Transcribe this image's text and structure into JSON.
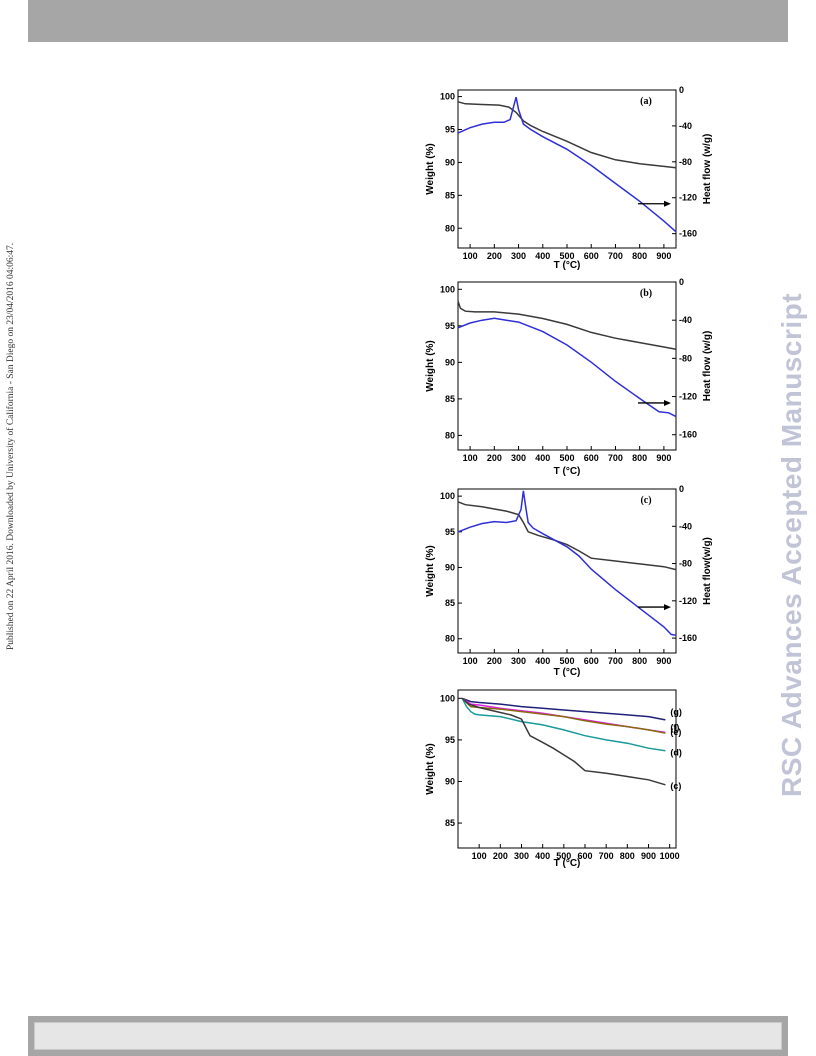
{
  "side_note": "Published on 22 April 2016. Downloaded by University of California - San Diego on 23/04/2016 04:06:47.",
  "watermark": "RSC Advances Accepted Manuscript",
  "chart_data": [
    {
      "type": "line",
      "panel_label": "(a)",
      "xlabel": "T (°C)",
      "ylabel": "Weight (%)",
      "y2label": "Heat flow (w/g)",
      "xlim": [
        50,
        950
      ],
      "ylim": [
        77,
        101
      ],
      "y2lim": [
        -176,
        0
      ],
      "xticks": [
        100,
        200,
        300,
        400,
        500,
        600,
        700,
        800,
        900
      ],
      "yticks": [
        80,
        85,
        90,
        95,
        100
      ],
      "y2ticks": [
        0,
        -40,
        -80,
        -120,
        -160
      ],
      "annotation": "arrow pointing to right axis",
      "series": [
        {
          "axis": "left",
          "color": "#3a3a3a",
          "x": [
            50,
            80,
            150,
            220,
            260,
            290,
            320,
            350,
            400,
            500,
            600,
            700,
            800,
            900,
            950
          ],
          "y": [
            99.2,
            98.9,
            98.8,
            98.7,
            98.4,
            97.6,
            96.3,
            95.6,
            94.7,
            93.2,
            91.5,
            90.4,
            89.8,
            89.4,
            89.2
          ]
        },
        {
          "axis": "right",
          "color": "#2f2fd6",
          "x": [
            50,
            100,
            150,
            200,
            240,
            265,
            280,
            290,
            300,
            320,
            350,
            400,
            500,
            600,
            700,
            800,
            900,
            950
          ],
          "y": [
            -48,
            -42,
            -38,
            -36,
            -36,
            -33,
            -18,
            -8,
            -22,
            -38,
            -44,
            -52,
            -66,
            -84,
            -104,
            -124,
            -146,
            -158
          ]
        }
      ]
    },
    {
      "type": "line",
      "panel_label": "(b)",
      "xlabel": "T (°C)",
      "ylabel": "Weight (%)",
      "y2label": "Heat flow (w/g)",
      "xlim": [
        50,
        950
      ],
      "ylim": [
        78,
        101
      ],
      "y2lim": [
        -176,
        0
      ],
      "xticks": [
        100,
        200,
        300,
        400,
        500,
        600,
        700,
        800,
        900
      ],
      "yticks": [
        80,
        85,
        90,
        95,
        100
      ],
      "y2ticks": [
        0,
        -40,
        -80,
        -120,
        -160
      ],
      "annotation": "arrow pointing to right axis",
      "series": [
        {
          "axis": "left",
          "color": "#3a3a3a",
          "x": [
            50,
            60,
            80,
            120,
            200,
            300,
            400,
            500,
            600,
            700,
            800,
            900,
            950
          ],
          "y": [
            98.4,
            97.4,
            97.0,
            96.9,
            96.9,
            96.6,
            96.0,
            95.2,
            94.1,
            93.3,
            92.7,
            92.1,
            91.8
          ]
        },
        {
          "axis": "right",
          "color": "#2f2fd6",
          "x": [
            50,
            100,
            150,
            200,
            250,
            300,
            400,
            500,
            600,
            700,
            800,
            880,
            920,
            950
          ],
          "y": [
            -48,
            -43,
            -40,
            -38,
            -40,
            -42,
            -52,
            -66,
            -84,
            -104,
            -122,
            -136,
            -137,
            -141
          ]
        }
      ]
    },
    {
      "type": "line",
      "panel_label": "(c)",
      "xlabel": "T (°C)",
      "ylabel": "Weight (%)",
      "y2label": "Heat flow(w/g)",
      "xlim": [
        50,
        950
      ],
      "ylim": [
        78,
        101
      ],
      "y2lim": [
        -176,
        0
      ],
      "xticks": [
        100,
        200,
        300,
        400,
        500,
        600,
        700,
        800,
        900
      ],
      "yticks": [
        80,
        85,
        90,
        95,
        100
      ],
      "y2ticks": [
        0,
        -40,
        -80,
        -120,
        -160
      ],
      "annotation": "arrow pointing to right axis",
      "series": [
        {
          "axis": "left",
          "color": "#3a3a3a",
          "x": [
            50,
            80,
            150,
            200,
            250,
            300,
            320,
            340,
            380,
            450,
            500,
            550,
            600,
            700,
            800,
            900,
            950
          ],
          "y": [
            99.2,
            98.8,
            98.5,
            98.2,
            97.9,
            97.4,
            96.3,
            95.0,
            94.5,
            93.8,
            93.2,
            92.3,
            91.3,
            90.9,
            90.5,
            90.1,
            89.7
          ]
        },
        {
          "axis": "right",
          "color": "#2f2fd6",
          "x": [
            50,
            100,
            150,
            200,
            250,
            290,
            310,
            320,
            330,
            340,
            360,
            400,
            500,
            550,
            600,
            700,
            800,
            900,
            930,
            950
          ],
          "y": [
            -46,
            -41,
            -37,
            -35,
            -36,
            -34,
            -22,
            -2,
            -20,
            -36,
            -42,
            -48,
            -62,
            -72,
            -86,
            -108,
            -128,
            -148,
            -156,
            -157
          ]
        }
      ]
    },
    {
      "type": "line",
      "xlabel": "T (°C)",
      "ylabel": "Weight (%)",
      "xlim": [
        0,
        1030
      ],
      "ylim": [
        82,
        101
      ],
      "xticks": [
        100,
        200,
        300,
        400,
        500,
        600,
        700,
        800,
        900,
        1000
      ],
      "yticks": [
        85,
        90,
        95,
        100
      ],
      "series": [
        {
          "name": "(g)",
          "color": "#20207a",
          "x": [
            20,
            60,
            100,
            200,
            300,
            400,
            500,
            600,
            700,
            800,
            900,
            980
          ],
          "y": [
            100,
            99.6,
            99.5,
            99.3,
            99.0,
            98.8,
            98.6,
            98.4,
            98.2,
            98.0,
            97.8,
            97.4
          ]
        },
        {
          "name": "(f)",
          "color": "#e020e0",
          "x": [
            20,
            60,
            100,
            200,
            300,
            400,
            500,
            600,
            700,
            800,
            900,
            980
          ],
          "y": [
            100,
            99.3,
            99.2,
            98.8,
            98.5,
            98.2,
            97.8,
            97.4,
            97.0,
            96.6,
            96.2,
            95.9
          ]
        },
        {
          "name": "(e)",
          "color": "#8a6a10",
          "x": [
            20,
            60,
            100,
            200,
            300,
            400,
            500,
            600,
            700,
            800,
            900,
            980
          ],
          "y": [
            100,
            99.0,
            98.9,
            98.7,
            98.4,
            98.1,
            97.8,
            97.3,
            96.9,
            96.6,
            96.2,
            95.8
          ]
        },
        {
          "name": "(d)",
          "color": "#1a9a9a",
          "x": [
            20,
            40,
            60,
            80,
            100,
            200,
            300,
            400,
            500,
            600,
            700,
            800,
            900,
            980
          ],
          "y": [
            100,
            99.0,
            98.4,
            98.1,
            98.0,
            97.8,
            97.2,
            96.8,
            96.2,
            95.5,
            95.0,
            94.6,
            94.0,
            93.7
          ]
        },
        {
          "name": "(c)",
          "color": "#3a3a3a",
          "x": [
            20,
            50,
            100,
            150,
            200,
            250,
            300,
            320,
            340,
            400,
            450,
            500,
            550,
            600,
            700,
            800,
            900,
            980
          ],
          "y": [
            100,
            99.3,
            98.9,
            98.6,
            98.3,
            98.0,
            97.5,
            96.5,
            95.5,
            94.7,
            94.0,
            93.2,
            92.4,
            91.3,
            91.0,
            90.6,
            90.2,
            89.6
          ]
        }
      ]
    }
  ]
}
